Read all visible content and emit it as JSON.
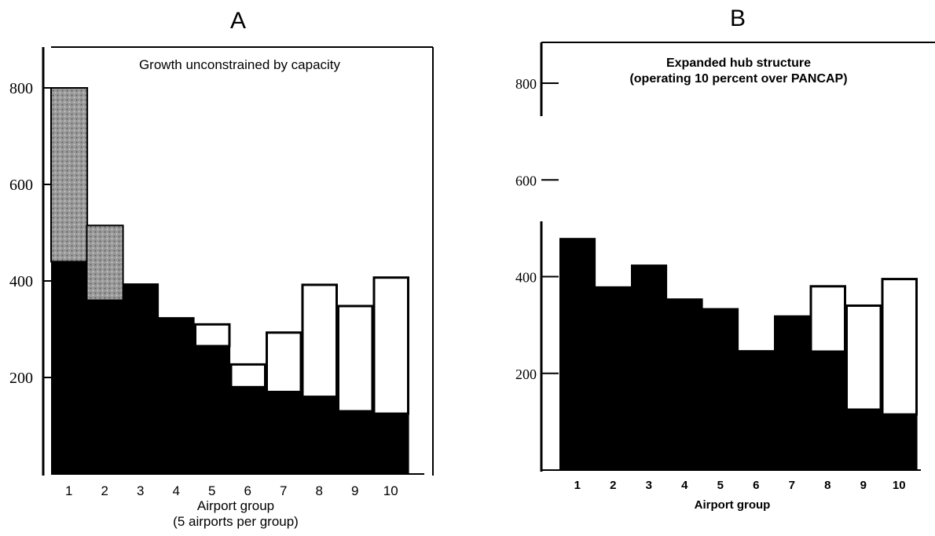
{
  "colors": {
    "ink": "#000000",
    "paper": "#ffffff",
    "stipple": "#8a8a8a"
  },
  "chart_data": [
    {
      "type": "bar",
      "panel": "A",
      "title": "Growth unconstrained by capacity",
      "xlabel": "Airport group",
      "xlabel_note": "(5 airports per group)",
      "ylabel": "",
      "ylim": [
        0,
        800
      ],
      "yticks": [
        200,
        400,
        600,
        800
      ],
      "categories": [
        "1",
        "2",
        "3",
        "4",
        "5",
        "6",
        "7",
        "8",
        "9",
        "10"
      ],
      "series": [
        {
          "values": [
            440,
            360,
            395,
            325,
            265,
            180,
            170,
            160,
            130,
            125
          ]
        },
        {
          "values": [
            360,
            155,
            0,
            0,
            45,
            47,
            123,
            232,
            218,
            282
          ]
        }
      ]
    },
    {
      "type": "bar",
      "panel": "B",
      "title": "Expanded hub structure",
      "subtitle": "(operating 10 percent over PANCAP)",
      "xlabel": "Airport group",
      "ylabel": "",
      "ylim": [
        0,
        800
      ],
      "yticks": [
        200,
        400,
        600,
        800
      ],
      "categories": [
        "1",
        "2",
        "3",
        "4",
        "5",
        "6",
        "7",
        "8",
        "9",
        "10"
      ],
      "series": [
        {
          "values": [
            480,
            380,
            425,
            355,
            335,
            248,
            320,
            245,
            125,
            115
          ]
        },
        {
          "values": [
            0,
            0,
            0,
            0,
            0,
            0,
            0,
            135,
            215,
            280
          ]
        }
      ]
    }
  ]
}
